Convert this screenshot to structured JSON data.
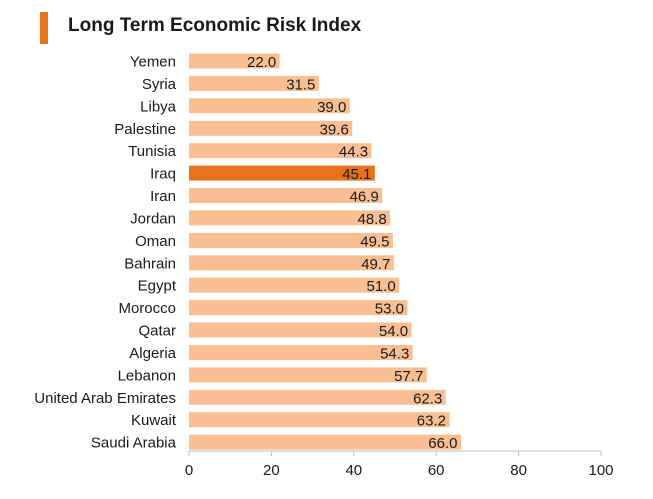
{
  "colors": {
    "accent": "#e8731a",
    "bar": "#f9bf92",
    "highlight": "#e8731a",
    "text": "#1a1a1a"
  },
  "chart_data": {
    "type": "bar",
    "orientation": "horizontal",
    "title": "Long Term Economic Risk Index",
    "categories": [
      "Yemen",
      "Syria",
      "Libya",
      "Palestine",
      "Tunisia",
      "Iraq",
      "Iran",
      "Jordan",
      "Oman",
      "Bahrain",
      "Egypt",
      "Morocco",
      "Qatar",
      "Algeria",
      "Lebanon",
      "United Arab Emirates",
      "Kuwait",
      "Saudi Arabia"
    ],
    "values": [
      22.0,
      31.5,
      39.0,
      39.6,
      44.3,
      45.1,
      46.9,
      48.8,
      49.5,
      49.7,
      51.0,
      53.0,
      54.0,
      54.3,
      57.7,
      62.3,
      63.2,
      66.0
    ],
    "value_labels": [
      "22.0",
      "31.5",
      "39.0",
      "39.6",
      "44.3",
      "45.1",
      "46.9",
      "48.8",
      "49.5",
      "49.7",
      "51.0",
      "53.0",
      "54.0",
      "54.3",
      "57.7",
      "62.3",
      "63.2",
      "66.0"
    ],
    "highlight": "Iraq",
    "xlim": [
      0,
      100
    ],
    "xticks": [
      "0",
      "20",
      "40",
      "60",
      "80",
      "100"
    ],
    "xlabel": "",
    "ylabel": "",
    "grid": false,
    "legend": "none"
  }
}
